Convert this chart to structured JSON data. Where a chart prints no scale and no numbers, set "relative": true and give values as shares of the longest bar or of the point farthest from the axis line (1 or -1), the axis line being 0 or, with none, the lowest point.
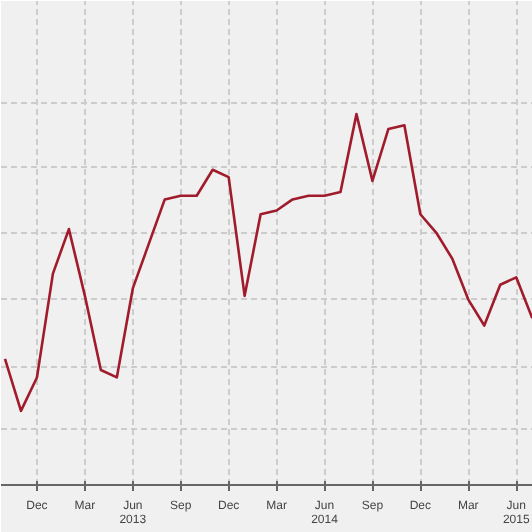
{
  "chart_data": {
    "type": "line",
    "relative": true,
    "color": "#a01c2c",
    "grid": true,
    "categories": [
      null,
      null,
      "Dec",
      null,
      null,
      "Mar",
      null,
      null,
      "Jun\n2013",
      null,
      null,
      "Sep",
      null,
      null,
      "Dec",
      null,
      null,
      "Mar",
      null,
      null,
      "Jun\n2014",
      null,
      null,
      "Sep",
      null,
      null,
      "Dec",
      null,
      null,
      "Mar",
      null,
      null,
      "Jun\n2015",
      null
    ],
    "values": [
      0.34,
      0.2,
      0.29,
      0.57,
      0.69,
      0.51,
      0.31,
      0.29,
      0.53,
      0.65,
      0.77,
      0.78,
      0.78,
      0.85,
      0.83,
      0.51,
      0.73,
      0.74,
      0.77,
      0.78,
      0.78,
      0.79,
      1,
      0.82,
      0.96,
      0.97,
      0.73,
      0.68,
      0.61,
      0.5,
      0.43,
      0.54,
      0.56,
      0.45
    ]
  }
}
